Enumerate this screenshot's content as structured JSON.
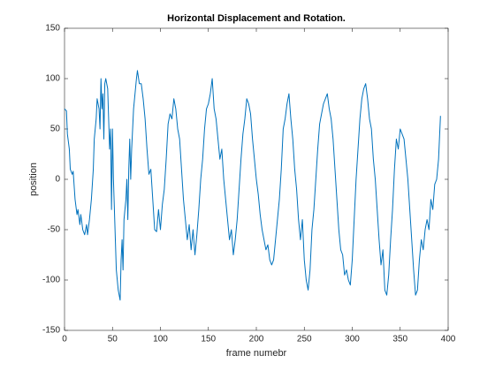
{
  "chart_data": {
    "type": "line",
    "title": "Horizontal Displacement and Rotation.",
    "x_label": "frame numebr",
    "y_label": "position",
    "xlim": [
      0,
      400
    ],
    "xticks": [
      0,
      50,
      100,
      150,
      200,
      250,
      300,
      350,
      400
    ],
    "ylim": [
      -150,
      150
    ],
    "yticks": [
      -150,
      -100,
      -50,
      0,
      50,
      100,
      150
    ],
    "x": [
      0,
      2,
      3,
      5,
      6,
      8,
      9,
      11,
      13,
      14,
      16,
      17,
      19,
      21,
      23,
      24,
      26,
      28,
      30,
      31,
      33,
      34,
      36,
      37,
      38,
      39,
      40,
      41,
      42,
      43,
      45,
      46,
      47,
      48,
      49,
      50,
      51,
      53,
      54,
      56,
      57,
      58,
      59,
      60,
      61,
      62,
      64,
      65,
      66,
      67,
      68,
      69,
      70,
      72,
      74,
      75,
      76,
      78,
      80,
      82,
      84,
      86,
      88,
      90,
      92,
      94,
      96,
      98,
      100,
      102,
      104,
      106,
      108,
      110,
      112,
      114,
      116,
      118,
      120,
      122,
      124,
      126,
      128,
      130,
      132,
      134,
      136,
      138,
      140,
      142,
      144,
      146,
      148,
      150,
      152,
      154,
      156,
      158,
      160,
      162,
      164,
      166,
      168,
      170,
      172,
      174,
      176,
      178,
      180,
      182,
      184,
      186,
      188,
      190,
      192,
      194,
      196,
      198,
      200,
      202,
      204,
      206,
      208,
      210,
      212,
      214,
      216,
      218,
      220,
      222,
      224,
      226,
      228,
      230,
      232,
      234,
      236,
      238,
      240,
      242,
      244,
      246,
      248,
      250,
      252,
      254,
      256,
      258,
      260,
      262,
      264,
      266,
      268,
      270,
      272,
      274,
      276,
      278,
      280,
      282,
      284,
      286,
      288,
      290,
      292,
      294,
      296,
      298,
      300,
      302,
      304,
      306,
      308,
      310,
      312,
      314,
      316,
      318,
      320,
      322,
      324,
      326,
      328,
      330,
      332,
      334,
      336,
      338,
      340,
      342,
      344,
      346,
      348,
      350,
      352,
      354,
      356,
      358,
      360,
      362,
      364,
      366,
      368,
      370,
      372,
      374,
      376,
      378,
      380,
      382,
      384,
      386,
      388,
      390,
      392
    ],
    "series": [
      {
        "name": "position",
        "color": "#0072bd",
        "values": [
          70,
          68,
          45,
          30,
          10,
          5,
          8,
          -20,
          -35,
          -30,
          -45,
          -35,
          -50,
          -55,
          -45,
          -55,
          -40,
          -20,
          10,
          40,
          60,
          80,
          70,
          50,
          100,
          70,
          85,
          40,
          95,
          100,
          90,
          60,
          30,
          50,
          -30,
          50,
          0,
          -60,
          -90,
          -110,
          -115,
          -120,
          -80,
          -60,
          -90,
          -40,
          -20,
          0,
          -40,
          10,
          40,
          0,
          30,
          70,
          90,
          100,
          108,
          95,
          95,
          80,
          60,
          30,
          5,
          10,
          -20,
          -50,
          -52,
          -30,
          -50,
          -25,
          -10,
          20,
          55,
          65,
          60,
          80,
          70,
          50,
          40,
          10,
          -20,
          -40,
          -60,
          -45,
          -70,
          -50,
          -75,
          -55,
          -30,
          0,
          20,
          50,
          70,
          75,
          85,
          100,
          70,
          60,
          40,
          20,
          30,
          0,
          -20,
          -40,
          -60,
          -50,
          -75,
          -60,
          -40,
          -10,
          20,
          45,
          60,
          80,
          75,
          65,
          40,
          20,
          0,
          -15,
          -35,
          -50,
          -60,
          -70,
          -65,
          -80,
          -85,
          -80,
          -60,
          -40,
          -20,
          10,
          50,
          60,
          75,
          85,
          60,
          40,
          10,
          -10,
          -40,
          -60,
          -40,
          -80,
          -100,
          -110,
          -90,
          -50,
          -30,
          0,
          30,
          55,
          65,
          75,
          80,
          85,
          70,
          60,
          40,
          10,
          -20,
          -50,
          -70,
          -75,
          -95,
          -90,
          -100,
          -105,
          -80,
          -40,
          0,
          30,
          60,
          80,
          90,
          95,
          80,
          60,
          50,
          20,
          0,
          -30,
          -60,
          -85,
          -70,
          -110,
          -115,
          -95,
          -60,
          -30,
          10,
          40,
          30,
          50,
          45,
          40,
          20,
          0,
          -30,
          -60,
          -90,
          -115,
          -110,
          -80,
          -60,
          -70,
          -50,
          -40,
          -50,
          -20,
          -30,
          -5,
          0,
          20,
          63
        ]
      }
    ]
  }
}
